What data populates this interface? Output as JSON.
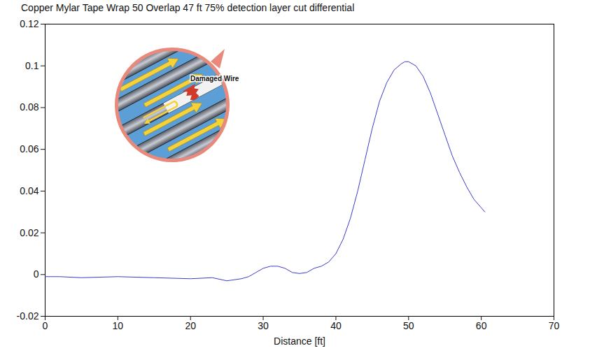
{
  "chart_data": {
    "type": "line",
    "title": "Copper Mylar Tape Wrap  50 Overlap 47 ft 75% detection layer cut differential",
    "x_label": "Distance [ft]",
    "x": [
      0,
      2,
      5,
      10,
      15,
      20,
      23,
      25,
      27,
      28,
      29,
      30,
      31,
      32,
      33,
      34,
      35,
      36,
      37,
      38,
      39,
      40,
      41,
      42,
      43,
      44,
      45,
      46,
      47,
      48,
      49,
      49.5,
      50,
      51,
      52,
      53,
      54,
      55,
      56,
      57,
      58,
      59,
      60,
      60.5
    ],
    "values": [
      -0.001,
      -0.001,
      -0.0015,
      -0.001,
      -0.0015,
      -0.002,
      -0.0015,
      -0.003,
      -0.002,
      -0.001,
      0.001,
      0.003,
      0.004,
      0.004,
      0.003,
      0.001,
      0.0005,
      0.001,
      0.003,
      0.004,
      0.006,
      0.01,
      0.017,
      0.027,
      0.04,
      0.055,
      0.07,
      0.083,
      0.092,
      0.098,
      0.101,
      0.102,
      0.102,
      0.1,
      0.095,
      0.087,
      0.077,
      0.067,
      0.057,
      0.049,
      0.042,
      0.036,
      0.032,
      0.03
    ],
    "color": "#3c3ccc",
    "xlim": [
      0,
      70
    ],
    "xticks": [
      0,
      10,
      20,
      30,
      40,
      50,
      60,
      70
    ],
    "ylim": [
      -0.02,
      0.12
    ],
    "yticks": [
      -0.02,
      0,
      0.02,
      0.04,
      0.06,
      0.08,
      0.1,
      0.12
    ],
    "grid": false,
    "annotations": [
      "Damaged Wire"
    ]
  }
}
